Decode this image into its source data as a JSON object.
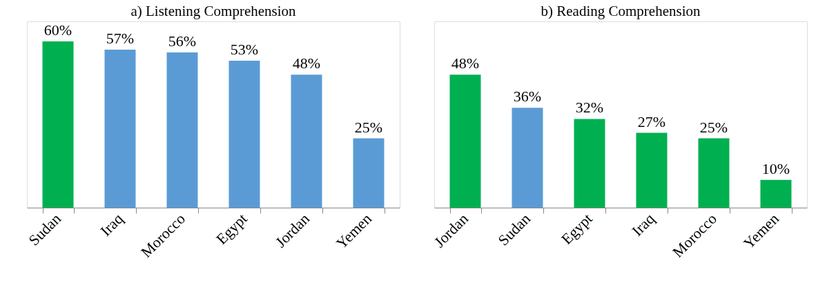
{
  "chart_data": [
    {
      "type": "bar",
      "title": "a) Listening Comprehension",
      "categories": [
        "Sudan",
        "Iraq",
        "Morocco",
        "Egypt",
        "Jordan",
        "Yemen"
      ],
      "values": [
        60,
        57,
        56,
        53,
        48,
        25
      ],
      "colors": [
        "#00b050",
        "#5b9bd5",
        "#5b9bd5",
        "#5b9bd5",
        "#5b9bd5",
        "#5b9bd5"
      ],
      "value_labels": [
        "60%",
        "57%",
        "56%",
        "53%",
        "48%",
        "25%"
      ],
      "grid": false,
      "tick_labels": "x"
    },
    {
      "type": "bar",
      "title": "b) Reading Comprehension",
      "categories": [
        "Jordan",
        "Sudan",
        "Egypt",
        "Iraq",
        "Morocco",
        "Yemen"
      ],
      "values": [
        48,
        36,
        32,
        27,
        25,
        10
      ],
      "colors": [
        "#00b050",
        "#5b9bd5",
        "#00b050",
        "#00b050",
        "#00b050",
        "#00b050"
      ],
      "value_labels": [
        "48%",
        "36%",
        "32%",
        "27%",
        "25%",
        "10%"
      ],
      "grid": false,
      "tick_labels": "x"
    }
  ]
}
